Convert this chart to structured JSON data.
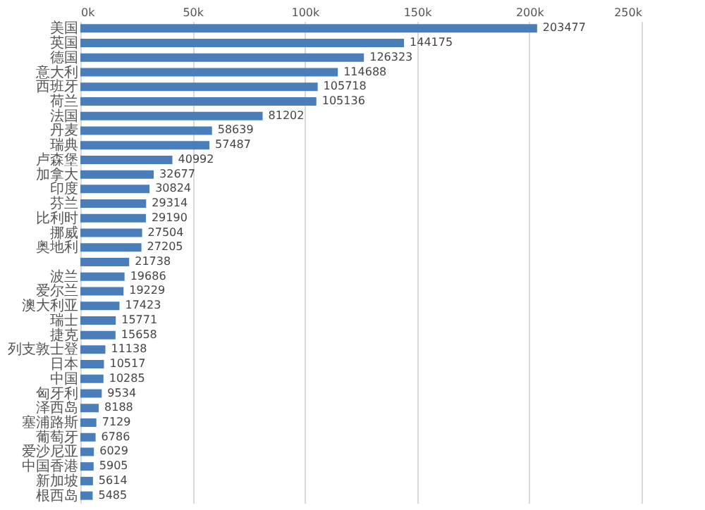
{
  "chart_data": {
    "type": "bar",
    "orientation": "horizontal",
    "categories": [
      "美国",
      "英国",
      "德国",
      "意大利",
      "西班牙",
      "荷兰",
      "法国",
      "丹麦",
      "瑞典",
      "卢森堡",
      "加拿大",
      "印度",
      "芬兰",
      "比利时",
      "挪威",
      "奥地利",
      null,
      "波兰",
      "爱尔兰",
      "澳大利亚",
      "瑞士",
      "捷克",
      "列支敦士登",
      "日本",
      "中国",
      "匈牙利",
      "泽西岛",
      "塞浦路斯",
      "葡萄牙",
      "爱沙尼亚",
      "中国香港",
      "新加坡",
      "根西岛"
    ],
    "values": [
      203477,
      144175,
      126323,
      114688,
      105718,
      105136,
      81202,
      58639,
      57487,
      40992,
      32677,
      30824,
      29314,
      29190,
      27504,
      27205,
      21738,
      19686,
      19229,
      17423,
      15771,
      15658,
      11138,
      10517,
      10285,
      9534,
      8188,
      7129,
      6786,
      6029,
      5905,
      5614,
      5485
    ],
    "color": "#4a7ebb",
    "xlim": [
      0,
      250000
    ],
    "xticks": [
      {
        "value": 0,
        "label": "0k"
      },
      {
        "value": 50000,
        "label": "50k"
      },
      {
        "value": 100000,
        "label": "100k"
      },
      {
        "value": 150000,
        "label": "150k"
      },
      {
        "value": 200000,
        "label": "200k"
      },
      {
        "value": 250000,
        "label": "250k"
      }
    ],
    "grid": "x",
    "data_labels": true
  }
}
